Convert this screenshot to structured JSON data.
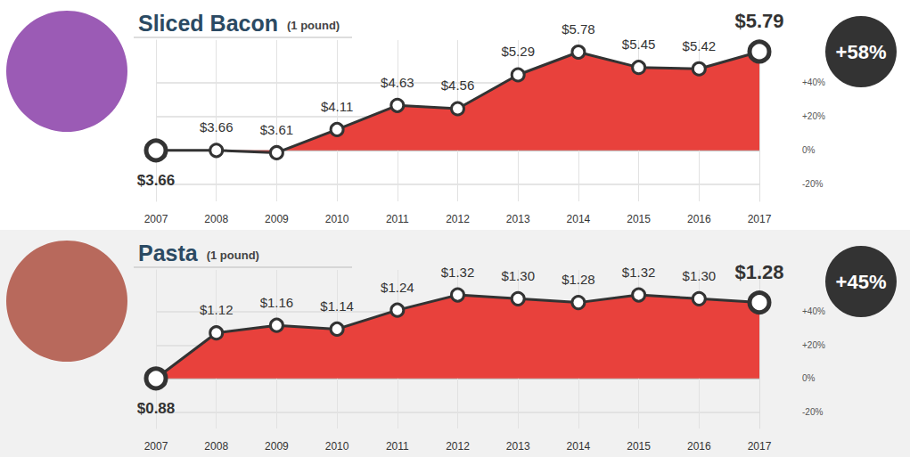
{
  "chart_data": [
    {
      "type": "area",
      "title": "Sliced Bacon",
      "subtitle": "(1 pound)",
      "categories": [
        "2007",
        "2008",
        "2009",
        "2010",
        "2011",
        "2012",
        "2013",
        "2014",
        "2015",
        "2016",
        "2017"
      ],
      "values": [
        3.66,
        3.66,
        3.61,
        4.11,
        4.63,
        4.56,
        5.29,
        5.78,
        5.45,
        5.42,
        5.79
      ],
      "value_labels": [
        "$3.66",
        "$3.66",
        "$3.61",
        "$4.11",
        "$4.63",
        "$4.56",
        "$5.29",
        "$5.78",
        "$5.45",
        "$5.42",
        "$5.79"
      ],
      "color": "#e8413c",
      "marker": "circle",
      "data_labels": true,
      "grid": true,
      "ylim": [
        2.562,
        6.039
      ],
      "y2lim": [
        -30,
        65
      ],
      "y2ticks": [
        {
          "value": -20,
          "label": "-20%"
        },
        {
          "value": 0,
          "label": "0%"
        },
        {
          "value": 20,
          "label": "+20%"
        },
        {
          "value": 40,
          "label": "+40%"
        }
      ],
      "annotations": [
        "+58%"
      ]
    },
    {
      "type": "area",
      "title": "Pasta",
      "subtitle": "(1 pound)",
      "categories": [
        "2007",
        "2008",
        "2009",
        "2010",
        "2011",
        "2012",
        "2013",
        "2014",
        "2015",
        "2016",
        "2017"
      ],
      "values": [
        0.88,
        1.12,
        1.16,
        1.14,
        1.24,
        1.32,
        1.3,
        1.28,
        1.32,
        1.3,
        1.28
      ],
      "value_labels": [
        "$0.88",
        "$1.12",
        "$1.16",
        "$1.14",
        "$1.24",
        "$1.32",
        "$1.30",
        "$1.28",
        "$1.32",
        "$1.30",
        "$1.28"
      ],
      "color": "#e8413c",
      "marker": "circle",
      "data_labels": true,
      "grid": true,
      "ylim": [
        0.616,
        1.452
      ],
      "y2lim": [
        -30,
        65
      ],
      "y2ticks": [
        {
          "value": -20,
          "label": "-20%"
        },
        {
          "value": 0,
          "label": "0%"
        },
        {
          "value": 20,
          "label": "+20%"
        },
        {
          "value": 40,
          "label": "+40%"
        }
      ],
      "annotations": [
        "+45%"
      ]
    }
  ]
}
